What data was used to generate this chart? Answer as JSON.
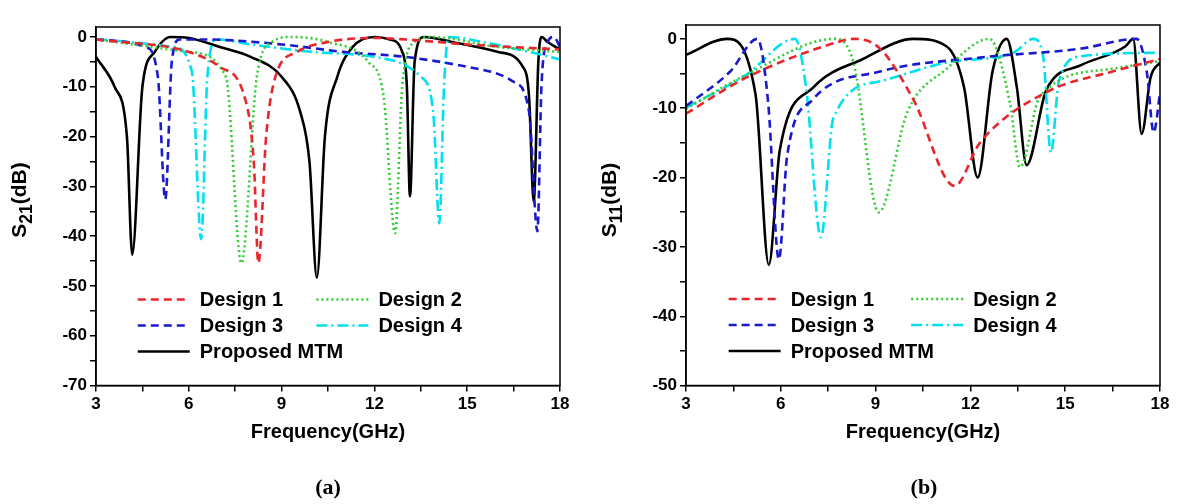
{
  "chart_data": [
    {
      "type": "line",
      "xlabel": "Frequency(GHz)",
      "ylabel": "S$_{21}$(dB)",
      "xlim": [
        3,
        18
      ],
      "ylim": [
        -70,
        2
      ],
      "marker": "none",
      "legend": "bottom left",
      "annotations": [
        "(a)"
      ],
      "xticks": [
        3,
        {
          "value": 4.5,
          "label": null
        },
        6,
        {
          "value": 7.5,
          "label": null
        },
        9,
        {
          "value": 10.5,
          "label": null
        },
        12,
        {
          "value": 13.5,
          "label": null
        },
        15,
        {
          "value": 16.5,
          "label": null
        },
        18
      ],
      "yticks": [
        0,
        {
          "value": -5,
          "label": null
        },
        -10,
        {
          "value": -15,
          "label": null
        },
        -20,
        {
          "value": -25,
          "label": null
        },
        -30,
        {
          "value": -35,
          "label": null
        },
        -40,
        {
          "value": -45,
          "label": null
        },
        -50,
        {
          "value": -55,
          "label": null
        },
        -60,
        {
          "value": -65,
          "label": null
        },
        -70
      ],
      "series": [
        {
          "name": "Design 1",
          "color": "#e8262b",
          "line_style": "dashed",
          "x": [
            3,
            6,
            7,
            7.8,
            8.1,
            8.25,
            8.5,
            8.8,
            9.5,
            10.5,
            12,
            13,
            15,
            18
          ],
          "values": [
            -0.5,
            -3,
            -6,
            -12,
            -25,
            -45.4,
            -20,
            -8,
            -3,
            -1,
            -0.2,
            -0.5,
            -1.5,
            -2.5
          ]
        },
        {
          "name": "Design 2",
          "color": "#33cc33",
          "line_style": "dotted",
          "x": [
            3,
            6,
            7.2,
            7.7,
            8.2,
            8.7,
            9.3,
            10.5,
            11.8,
            12.3,
            12.67,
            12.9,
            13.3,
            13.8,
            16,
            18
          ],
          "values": [
            -0.5,
            -3,
            -8,
            -45.4,
            -8,
            -1,
            0,
            -1,
            -5,
            -12,
            -39.4,
            -10,
            -1,
            0,
            -2,
            -3
          ]
        },
        {
          "name": "Design 3",
          "color": "#1a1acc",
          "line_style": "dashed",
          "x": [
            3,
            4.6,
            5,
            5.24,
            5.45,
            5.7,
            6.5,
            9,
            11,
            13,
            15,
            16.5,
            17,
            17.27,
            17.4,
            17.6,
            17.8,
            18
          ],
          "values": [
            -0.5,
            -2,
            -8,
            -32.6,
            -5,
            -0.5,
            -0.5,
            -1.5,
            -3,
            -4,
            -6,
            -9,
            -15,
            -39,
            -10,
            -1,
            0,
            -2
          ]
        },
        {
          "name": "Design 4",
          "color": "#00e0ee",
          "line_style": "dashdot",
          "x": [
            3,
            5.5,
            6.1,
            6.4,
            6.6,
            6.9,
            8,
            10,
            12,
            13.5,
            13.9,
            14.1,
            14.25,
            14.4,
            15.5,
            17,
            18
          ],
          "values": [
            -0.5,
            -2,
            -7,
            -40.6,
            -8,
            -0.5,
            -1.5,
            -3,
            -4,
            -8,
            -15,
            -37.4,
            -10,
            0,
            -1,
            -3,
            -4.5
          ]
        },
        {
          "name": "Proposed MTM",
          "color": "#000000",
          "line_style": "solid",
          "x": [
            3,
            3.6,
            4,
            4.17,
            4.5,
            4.9,
            5.4,
            6,
            7,
            8,
            9,
            9.6,
            9.9,
            10.14,
            10.4,
            10.8,
            11.3,
            12,
            12.5,
            12.9,
            13.05,
            13.15,
            13.3,
            13.6,
            14.5,
            16,
            16.8,
            17,
            17.15,
            17.3,
            17.4,
            17.6,
            18
          ],
          "values": [
            -4,
            -10,
            -20,
            -43.7,
            -10,
            -3,
            0,
            -0.2,
            -2,
            -4,
            -8,
            -15,
            -25,
            -48.3,
            -20,
            -8,
            -2,
            0,
            -0.5,
            -3,
            -10,
            -32,
            -5,
            0,
            -1,
            -3,
            -6,
            -12,
            -33.1,
            -5,
            0,
            -1,
            -2.5
          ]
        }
      ]
    },
    {
      "type": "line",
      "xlabel": "Frequency(GHz)",
      "ylabel": "S$_{11}$(dB)",
      "xlim": [
        3,
        18
      ],
      "ylim": [
        -50,
        2
      ],
      "marker": "none",
      "legend": "bottom left",
      "annotations": [
        "(b)"
      ],
      "xticks": [
        3,
        {
          "value": 4.5,
          "label": null
        },
        6,
        {
          "value": 7.5,
          "label": null
        },
        9,
        {
          "value": 10.5,
          "label": null
        },
        12,
        {
          "value": 13.5,
          "label": null
        },
        15,
        {
          "value": 16.5,
          "label": null
        },
        18
      ],
      "yticks": [
        0,
        {
          "value": -5,
          "label": null
        },
        -10,
        {
          "value": -15,
          "label": null
        },
        -20,
        {
          "value": -25,
          "label": null
        },
        -30,
        {
          "value": -35,
          "label": null
        },
        -40,
        {
          "value": -45,
          "label": null
        },
        -50
      ],
      "series": [
        {
          "name": "Design 1",
          "color": "#e8262b",
          "line_style": "dashed",
          "x": [
            3,
            4.9,
            7.77,
            8.3,
            9.14,
            10.2,
            11.5,
            12.3,
            14.4,
            16.5,
            18
          ],
          "values": [
            -10.8,
            -5.6,
            -0.5,
            0,
            -1.4,
            -8.8,
            -21.2,
            -15,
            -7.7,
            -4.7,
            -2.9
          ]
        },
        {
          "name": "Design 2",
          "color": "#33cc33",
          "line_style": "dotted",
          "x": [
            3,
            4.9,
            7.7,
            8.3,
            9.1,
            10,
            11.25,
            12.6,
            13.25,
            13.57,
            14.2,
            16.5,
            18
          ],
          "values": [
            -10.1,
            -5.2,
            0,
            -3.4,
            -25,
            -10.6,
            -4.3,
            0,
            -9.2,
            -18.5,
            -8.3,
            -4.3,
            -3.2
          ]
        },
        {
          "name": "Design 3",
          "color": "#1a1acc",
          "line_style": "dashed",
          "x": [
            3,
            4.4,
            5.26,
            5.6,
            5.94,
            6.2,
            7,
            9.14,
            12.3,
            15.5,
            17.26,
            17.58,
            17.8,
            18
          ],
          "values": [
            -9.7,
            -4.7,
            0,
            -9.2,
            -31.8,
            -16.9,
            -8.8,
            -4.7,
            -2.7,
            -1.4,
            0,
            -4.7,
            -13.5,
            -7.9
          ]
        },
        {
          "name": "Design 4",
          "color": "#00e0ee",
          "line_style": "dashdot",
          "x": [
            3,
            4.9,
            6.45,
            6.8,
            7.27,
            7.66,
            9.14,
            11.25,
            13.36,
            14,
            14.3,
            14.55,
            14.8,
            15.5,
            18
          ],
          "values": [
            -9.9,
            -5.2,
            0,
            -7,
            -28.6,
            -11.5,
            -6.1,
            -3.4,
            -2,
            0,
            -2.5,
            -16.4,
            -6.1,
            -2.5,
            -2
          ]
        },
        {
          "name": "Proposed MTM",
          "color": "#000000",
          "line_style": "solid",
          "x": [
            3,
            4.3,
            5.2,
            5.62,
            5.97,
            7.03,
            8.6,
            10.2,
            11.25,
            11.8,
            12.23,
            12.7,
            13.15,
            13.47,
            13.78,
            14.4,
            15.5,
            16.9,
            17.15,
            17.42,
            17.7,
            18
          ],
          "values": [
            -2.3,
            0,
            -8,
            -32.6,
            -16,
            -7,
            -2.9,
            0,
            -1.1,
            -7,
            -20,
            -4.7,
            0,
            -7,
            -18.2,
            -7.4,
            -3.8,
            -1.1,
            0,
            -13.7,
            -5.6,
            -3.4
          ]
        }
      ]
    }
  ]
}
